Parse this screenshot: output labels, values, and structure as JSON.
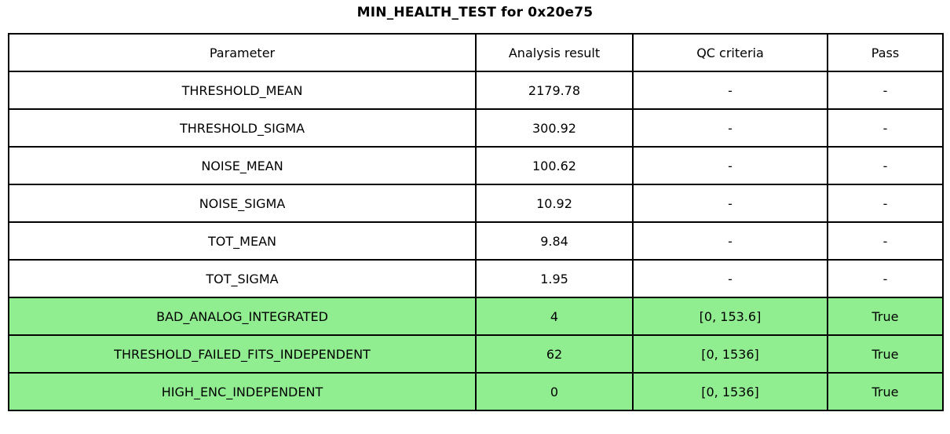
{
  "chart_data": {
    "type": "table",
    "title": "MIN_HEALTH_TEST for 0x20e75",
    "columns": [
      "Parameter",
      "Analysis result",
      "QC criteria",
      "Pass"
    ],
    "rows": [
      [
        "THRESHOLD_MEAN",
        "2179.78",
        "-",
        "-"
      ],
      [
        "THRESHOLD_SIGMA",
        "300.92",
        "-",
        "-"
      ],
      [
        "NOISE_MEAN",
        "100.62",
        "-",
        "-"
      ],
      [
        "NOISE_SIGMA",
        "10.92",
        "-",
        "-"
      ],
      [
        "TOT_MEAN",
        "9.84",
        "-",
        "-"
      ],
      [
        "TOT_SIGMA",
        "1.95",
        "-",
        "-"
      ],
      [
        "BAD_ANALOG_INTEGRATED",
        "4",
        "[0, 153.6]",
        "True"
      ],
      [
        "THRESHOLD_FAILED_FITS_INDEPENDENT",
        "62",
        "[0, 1536]",
        "True"
      ],
      [
        "HIGH_ENC_INDEPENDENT",
        "0",
        "[0, 1536]",
        "True"
      ]
    ],
    "pass_rows": [
      6,
      7,
      8
    ],
    "colors": {
      "pass_row_background": "#90EE90",
      "border": "#000000",
      "text": "#000000",
      "background": "#FFFFFF"
    },
    "layout": {
      "grid": "full-borders",
      "title_position": "top-center"
    }
  }
}
